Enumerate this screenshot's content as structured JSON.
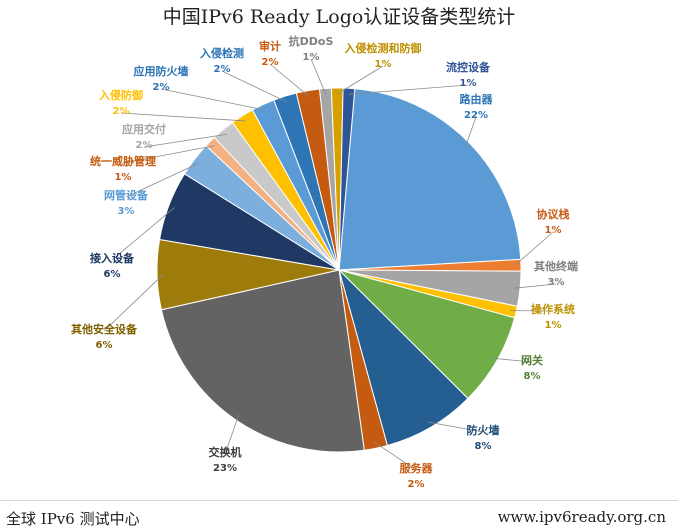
{
  "page": {
    "footer_left": "全球 IPv6 测试中心",
    "footer_right": "www.ipv6ready.org.cn"
  },
  "chart_data": {
    "type": "pie",
    "title": "中国IPv6 Ready Logo认证设备类型统计",
    "slices": [
      {
        "label": "路由器",
        "percent_label": "22%",
        "value": 22,
        "color": "#5b9bd5",
        "label_color": "#2e75b6"
      },
      {
        "label": "协议栈",
        "percent_label": "1%",
        "value": 1,
        "color": "#ed7d31",
        "label_color": "#c55a11"
      },
      {
        "label": "其他终端",
        "percent_label": "3%",
        "value": 3,
        "color": "#a5a5a5",
        "label_color": "#7f7f7f"
      },
      {
        "label": "操作系统",
        "percent_label": "1%",
        "value": 1,
        "color": "#ffc000",
        "label_color": "#bf9000"
      },
      {
        "label": "网关",
        "percent_label": "8%",
        "value": 8,
        "color": "#70ad47",
        "label_color": "#548235"
      },
      {
        "label": "防火墙",
        "percent_label": "8%",
        "value": 8,
        "color": "#255e91",
        "label_color": "#1f4e79"
      },
      {
        "label": "服务器",
        "percent_label": "2%",
        "value": 2,
        "color": "#c55a11",
        "label_color": "#c55a11"
      },
      {
        "label": "交换机",
        "percent_label": "23%",
        "value": 23,
        "color": "#636363",
        "label_color": "#404040"
      },
      {
        "label": "其他安全设备",
        "percent_label": "6%",
        "value": 6,
        "color": "#9e7c0c",
        "label_color": "#7f6000"
      },
      {
        "label": "接入设备",
        "percent_label": "6%",
        "value": 6,
        "color": "#203864",
        "label_color": "#1f3864"
      },
      {
        "label": "网管设备",
        "percent_label": "3%",
        "value": 3,
        "color": "#7cafdd",
        "label_color": "#5b9bd5"
      },
      {
        "label": "统一威胁管理",
        "percent_label": "1%",
        "value": 1,
        "color": "#f4b183",
        "label_color": "#c55a11"
      },
      {
        "label": "应用交付",
        "percent_label": "2%",
        "value": 2,
        "color": "#c9c9c9",
        "label_color": "#a5a5a5"
      },
      {
        "label": "入侵防御",
        "percent_label": "2%",
        "value": 2,
        "color": "#ffc000",
        "label_color": "#ffc000"
      },
      {
        "label": "应用防火墙",
        "percent_label": "2%",
        "value": 2,
        "color": "#5b9bd5",
        "label_color": "#2e75b6"
      },
      {
        "label": "入侵检测",
        "percent_label": "2%",
        "value": 2,
        "color": "#2e75b6",
        "label_color": "#2e75b6"
      },
      {
        "label": "审计",
        "percent_label": "2%",
        "value": 2,
        "color": "#c55a11",
        "label_color": "#c55a11"
      },
      {
        "label": "抗DDoS",
        "percent_label": "1%",
        "value": 1,
        "color": "#a5a5a5",
        "label_color": "#7f7f7f"
      },
      {
        "label": "入侵检测和防御",
        "percent_label": "1%",
        "value": 1,
        "color": "#d6a100",
        "label_color": "#bf9000"
      },
      {
        "label": "流控设备",
        "percent_label": "1%",
        "value": 1,
        "color": "#2f5597",
        "label_color": "#2f5597"
      }
    ],
    "legend": "none",
    "data_labels": "outside with leader lines"
  }
}
